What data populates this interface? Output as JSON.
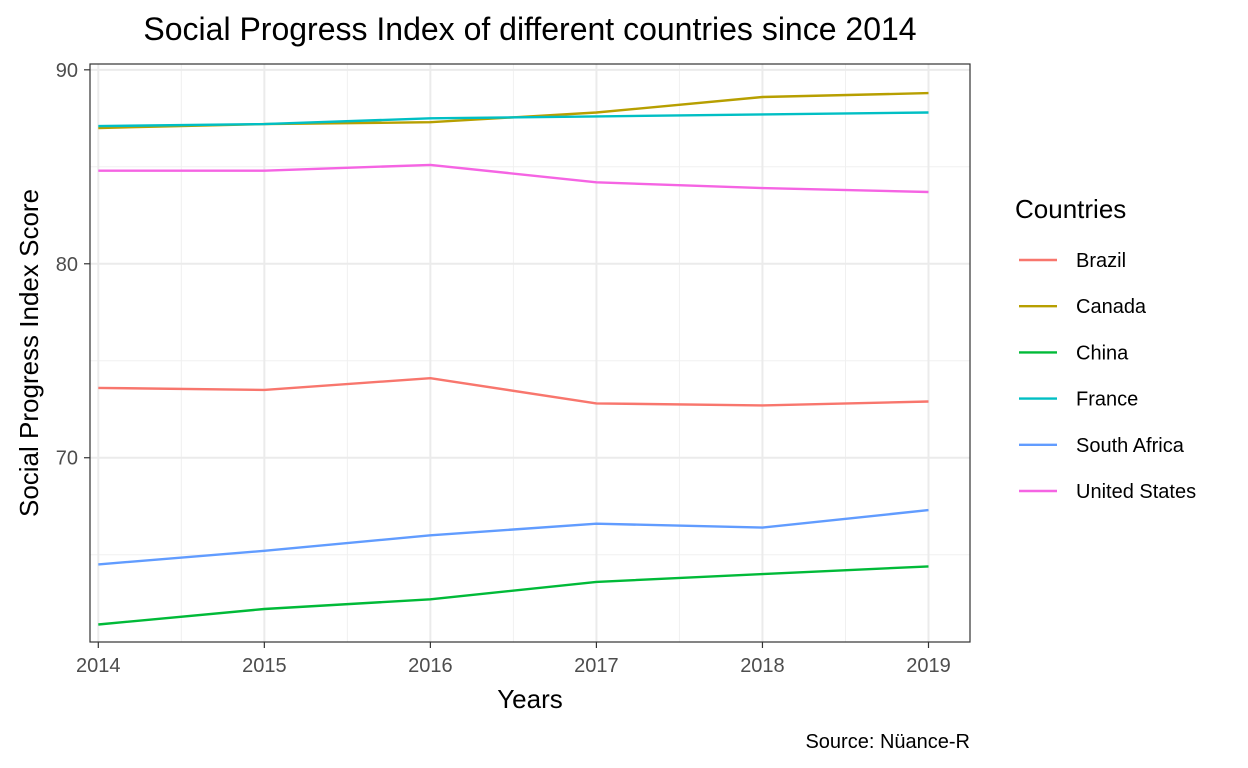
{
  "chart_data": {
    "type": "line",
    "title": "Social Progress Index of different countries since 2014",
    "xlabel": "Years",
    "ylabel": "Social Progress Index Score",
    "caption": "Source: Nüance-R",
    "x": [
      2014,
      2015,
      2016,
      2017,
      2018,
      2019
    ],
    "x_ticks": [
      "2014",
      "2015",
      "2016",
      "2017",
      "2018",
      "2019"
    ],
    "y_ticks": [
      "70",
      "80",
      "90"
    ],
    "xlim": [
      2013.95,
      2019.25
    ],
    "ylim": [
      60.5,
      90.3
    ],
    "grid": true,
    "legend": {
      "title": "Countries",
      "position": "right"
    },
    "series": [
      {
        "name": "Brazil",
        "color": "#F8766D",
        "values": [
          73.6,
          73.5,
          74.1,
          72.8,
          72.7,
          72.9
        ]
      },
      {
        "name": "Canada",
        "color": "#B79F00",
        "values": [
          87.0,
          87.2,
          87.3,
          87.8,
          88.6,
          88.8
        ]
      },
      {
        "name": "China",
        "color": "#00BA38",
        "values": [
          61.4,
          62.2,
          62.7,
          63.6,
          64.0,
          64.4
        ]
      },
      {
        "name": "France",
        "color": "#00BFC4",
        "values": [
          87.1,
          87.2,
          87.5,
          87.6,
          87.7,
          87.8
        ]
      },
      {
        "name": "South Africa",
        "color": "#619CFF",
        "values": [
          64.5,
          65.2,
          66.0,
          66.6,
          66.4,
          67.3
        ]
      },
      {
        "name": "United States",
        "color": "#F564E3",
        "values": [
          84.8,
          84.8,
          85.1,
          84.2,
          83.9,
          83.7
        ]
      }
    ]
  }
}
